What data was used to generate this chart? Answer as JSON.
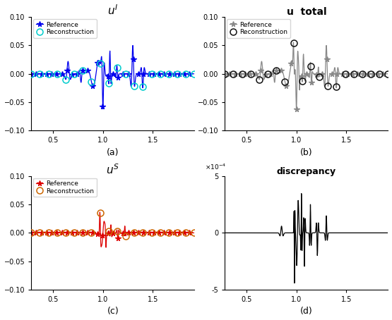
{
  "title_a": "$u^I$",
  "title_b": "u  total",
  "title_c": "$u^S$",
  "title_d": "discrepancy",
  "label_a": "(a)",
  "label_b": "(b)",
  "label_c": "(c)",
  "label_d": "(d)",
  "xlim": [
    0.28,
    1.92
  ],
  "ylim_abc": [
    -0.1,
    0.1
  ],
  "ylim_d": [
    -0.0005,
    0.0005
  ],
  "ref_color_a": "#0000EE",
  "rec_color_a": "#00CCCC",
  "ref_color_c": "#DD0000",
  "rec_color_c": "#CC6600",
  "ref_color_b": "#888888",
  "rec_color_b": "#111111",
  "disc_color": "#000000",
  "xticks": [
    0.5,
    1.0,
    1.5
  ],
  "yticks_abc": [
    -0.1,
    -0.05,
    0.0,
    0.05,
    0.1
  ],
  "yticks_d": [
    -0.0005,
    0,
    0.0005
  ]
}
